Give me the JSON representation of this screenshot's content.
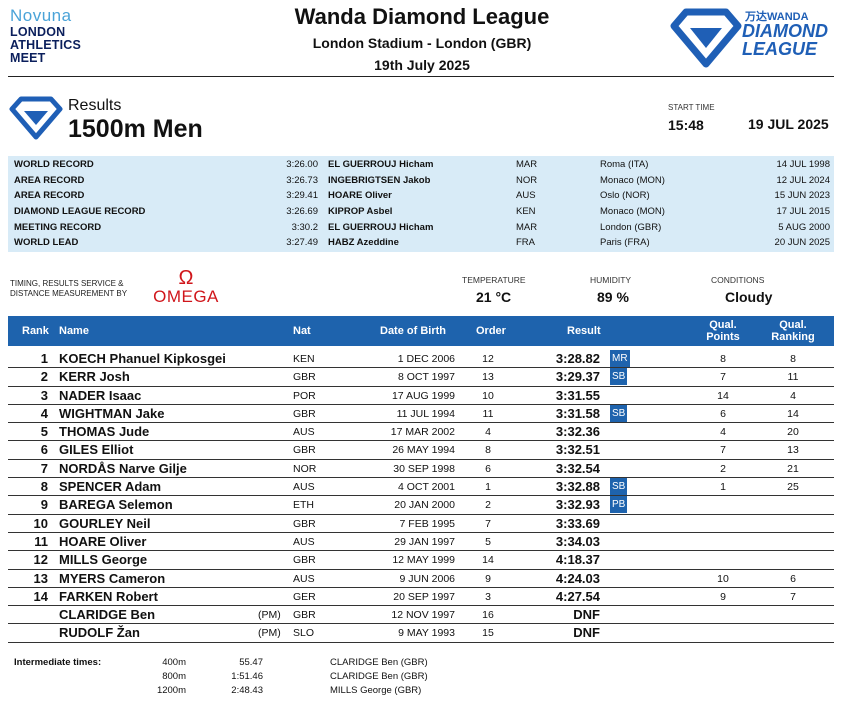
{
  "header": {
    "sponsor": {
      "brand": "Novuna",
      "line1": "LONDON",
      "line2": "ATHLETICS",
      "line3": "MEET"
    },
    "title": "Wanda Diamond League",
    "venue": "London Stadium - London (GBR)",
    "date": "19th July 2025",
    "dl_logo": {
      "wanda": "万达WANDA",
      "line1": "DIAMOND",
      "line2": "LEAGUE"
    }
  },
  "results_heading": {
    "label": "Results",
    "event": "1500m Men",
    "start_time_label": "START TIME",
    "start_time": "15:48",
    "start_date": "19 JUL 2025"
  },
  "records": [
    {
      "type": "WORLD RECORD",
      "time": "3:26.00",
      "athlete": "EL GUERROUJ Hicham",
      "nat": "MAR",
      "venue": "Roma (ITA)",
      "date": "14 JUL 1998"
    },
    {
      "type": "AREA RECORD",
      "time": "3:26.73",
      "athlete": "INGEBRIGTSEN Jakob",
      "nat": "NOR",
      "venue": "Monaco (MON)",
      "date": "12 JUL 2024"
    },
    {
      "type": "AREA RECORD",
      "time": "3:29.41",
      "athlete": "HOARE Oliver",
      "nat": "AUS",
      "venue": "Oslo (NOR)",
      "date": "15 JUN 2023"
    },
    {
      "type": "DIAMOND LEAGUE RECORD",
      "time": "3:26.69",
      "athlete": "KIPROP Asbel",
      "nat": "KEN",
      "venue": "Monaco (MON)",
      "date": "17 JUL 2015"
    },
    {
      "type": "MEETING RECORD",
      "time": "3:30.2",
      "athlete": "EL GUERROUJ Hicham",
      "nat": "MAR",
      "venue": "London (GBR)",
      "date": "5 AUG 2000"
    },
    {
      "type": "WORLD LEAD",
      "time": "3:27.49",
      "athlete": "HABZ Azeddine",
      "nat": "FRA",
      "venue": "Paris (FRA)",
      "date": "20 JUN 2025"
    }
  ],
  "timing": {
    "line1": "TIMING, RESULTS SERVICE &",
    "line2": "DISTANCE MEASUREMENT BY",
    "omega_symbol": "Ω",
    "omega_word": "OMEGA"
  },
  "conditions": {
    "temperature_label": "TEMPERATURE",
    "temperature": "21 °C",
    "humidity_label": "HUMIDITY",
    "humidity": "89 %",
    "conditions_label": "CONDITIONS",
    "conditions": "Cloudy"
  },
  "table": {
    "headers": {
      "rank": "Rank",
      "name": "Name",
      "nat": "Nat",
      "dob": "Date of Birth",
      "order": "Order",
      "result": "Result",
      "qp1": "Qual.",
      "qp2": "Points",
      "qr1": "Qual.",
      "qr2": "Ranking"
    },
    "rows": [
      {
        "rank": "1",
        "name": "KOECH Phanuel Kipkosgei",
        "pm": "",
        "nat": "KEN",
        "dob": "1 DEC 2006",
        "order": "12",
        "result": "3:28.82",
        "badge": "MR",
        "qp": "8",
        "qr": "8"
      },
      {
        "rank": "2",
        "name": "KERR Josh",
        "pm": "",
        "nat": "GBR",
        "dob": "8 OCT 1997",
        "order": "13",
        "result": "3:29.37",
        "badge": "SB",
        "qp": "7",
        "qr": "11"
      },
      {
        "rank": "3",
        "name": "NADER Isaac",
        "pm": "",
        "nat": "POR",
        "dob": "17 AUG 1999",
        "order": "10",
        "result": "3:31.55",
        "badge": "",
        "qp": "14",
        "qr": "4"
      },
      {
        "rank": "4",
        "name": "WIGHTMAN Jake",
        "pm": "",
        "nat": "GBR",
        "dob": "11 JUL 1994",
        "order": "11",
        "result": "3:31.58",
        "badge": "SB",
        "qp": "6",
        "qr": "14"
      },
      {
        "rank": "5",
        "name": "THOMAS Jude",
        "pm": "",
        "nat": "AUS",
        "dob": "17 MAR 2002",
        "order": "4",
        "result": "3:32.36",
        "badge": "",
        "qp": "4",
        "qr": "20"
      },
      {
        "rank": "6",
        "name": "GILES Elliot",
        "pm": "",
        "nat": "GBR",
        "dob": "26 MAY 1994",
        "order": "8",
        "result": "3:32.51",
        "badge": "",
        "qp": "7",
        "qr": "13"
      },
      {
        "rank": "7",
        "name": "NORDÅS Narve Gilje",
        "pm": "",
        "nat": "NOR",
        "dob": "30 SEP 1998",
        "order": "6",
        "result": "3:32.54",
        "badge": "",
        "qp": "2",
        "qr": "21"
      },
      {
        "rank": "8",
        "name": "SPENCER Adam",
        "pm": "",
        "nat": "AUS",
        "dob": "4 OCT 2001",
        "order": "1",
        "result": "3:32.88",
        "badge": "SB",
        "qp": "1",
        "qr": "25"
      },
      {
        "rank": "9",
        "name": "BAREGA Selemon",
        "pm": "",
        "nat": "ETH",
        "dob": "20 JAN 2000",
        "order": "2",
        "result": "3:32.93",
        "badge": "PB",
        "qp": "",
        "qr": ""
      },
      {
        "rank": "10",
        "name": "GOURLEY Neil",
        "pm": "",
        "nat": "GBR",
        "dob": "7 FEB 1995",
        "order": "7",
        "result": "3:33.69",
        "badge": "",
        "qp": "",
        "qr": ""
      },
      {
        "rank": "11",
        "name": "HOARE Oliver",
        "pm": "",
        "nat": "AUS",
        "dob": "29 JAN 1997",
        "order": "5",
        "result": "3:34.03",
        "badge": "",
        "qp": "",
        "qr": ""
      },
      {
        "rank": "12",
        "name": "MILLS George",
        "pm": "",
        "nat": "GBR",
        "dob": "12 MAY 1999",
        "order": "14",
        "result": "4:18.37",
        "badge": "",
        "qp": "",
        "qr": ""
      },
      {
        "rank": "13",
        "name": "MYERS Cameron",
        "pm": "",
        "nat": "AUS",
        "dob": "9 JUN 2006",
        "order": "9",
        "result": "4:24.03",
        "badge": "",
        "qp": "10",
        "qr": "6"
      },
      {
        "rank": "14",
        "name": "FARKEN Robert",
        "pm": "",
        "nat": "GER",
        "dob": "20 SEP 1997",
        "order": "3",
        "result": "4:27.54",
        "badge": "",
        "qp": "9",
        "qr": "7"
      },
      {
        "rank": "",
        "name": "CLARIDGE Ben",
        "pm": "(PM)",
        "nat": "GBR",
        "dob": "12 NOV 1997",
        "order": "16",
        "result": "DNF",
        "badge": "",
        "qp": "",
        "qr": ""
      },
      {
        "rank": "",
        "name": "RUDOLF Žan",
        "pm": "(PM)",
        "nat": "SLO",
        "dob": "9 MAY 1993",
        "order": "15",
        "result": "DNF",
        "badge": "",
        "qp": "",
        "qr": ""
      }
    ]
  },
  "intermediate": {
    "label": "Intermediate times:",
    "rows": [
      {
        "distance": "400m",
        "time": "55.47",
        "athlete": "CLARIDGE Ben (GBR)"
      },
      {
        "distance": "800m",
        "time": "1:51.46",
        "athlete": "CLARIDGE Ben (GBR)"
      },
      {
        "distance": "1200m",
        "time": "2:48.43",
        "athlete": "MILLS George (GBR)"
      }
    ]
  },
  "colors": {
    "accent": "#1e63ad",
    "records_bg": "#d8ebf7",
    "omega_red": "#d0161b",
    "dl_blue": "#1f5fb6"
  }
}
